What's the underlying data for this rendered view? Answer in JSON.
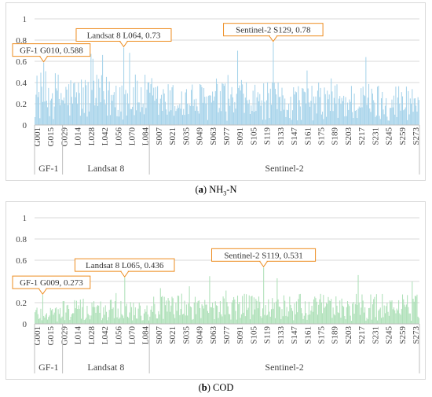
{
  "captions": {
    "a": {
      "letter": "a",
      "label": "NH3-N",
      "label_main": "NH",
      "label_sub": "3",
      "label_rest": "-N"
    },
    "b": {
      "letter": "b",
      "label": "COD"
    }
  },
  "chart_data": [
    {
      "type": "bar",
      "id": "a",
      "color": "#a6d3ea",
      "yticks": [
        "0",
        "0.2",
        "0.4",
        "0.6",
        "0.8",
        "1"
      ],
      "ylim": [
        0,
        1
      ],
      "grid": true,
      "groups": [
        {
          "name": "GF-1",
          "count": 29
        },
        {
          "name": "Landsat 8",
          "count": 90
        },
        {
          "name": "Sentinel-2",
          "count": 280
        }
      ],
      "xtick_labels": [
        "G001",
        "G015",
        "G029",
        "L014",
        "L028",
        "L042",
        "L056",
        "L070",
        "L084",
        "S007",
        "S021",
        "S035",
        "S049",
        "S063",
        "S077",
        "S091",
        "S105",
        "S119",
        "S133",
        "S147",
        "S161",
        "S175",
        "S189",
        "S203",
        "S217",
        "S231",
        "S245",
        "S259",
        "S273"
      ],
      "annotations": [
        {
          "text": "GF-1 G010, 0.588",
          "group": 0,
          "item": 10,
          "value": 0.588
        },
        {
          "text": "Landsat 8 L064, 0.73",
          "group": 1,
          "item": 64,
          "value": 0.73
        },
        {
          "text": "Sentinel-2 S129, 0.78",
          "group": 2,
          "item": 129,
          "value": 0.78
        }
      ],
      "profile": {
        "GF-1": 0.34,
        "Landsat 8": 0.32,
        "Sentinel-2": 0.27
      },
      "peaks": [
        {
          "group": 0,
          "item": 10,
          "value": 0.588
        },
        {
          "group": 1,
          "item": 64,
          "value": 0.73
        },
        {
          "group": 1,
          "item": 70,
          "value": 0.68
        },
        {
          "group": 1,
          "item": 42,
          "value": 0.66
        },
        {
          "group": 1,
          "item": 30,
          "value": 0.67
        },
        {
          "group": 2,
          "item": 92,
          "value": 0.7
        },
        {
          "group": 2,
          "item": 129,
          "value": 0.78
        },
        {
          "group": 2,
          "item": 225,
          "value": 0.64
        }
      ]
    },
    {
      "type": "bar",
      "id": "b",
      "color": "#aee0b8",
      "yticks": [
        "0",
        "0.2",
        "0.4",
        "0.6",
        "0.8",
        "1"
      ],
      "ylim": [
        0,
        1
      ],
      "grid": true,
      "groups": [
        {
          "name": "GF-1",
          "count": 29
        },
        {
          "name": "Landsat 8",
          "count": 90
        },
        {
          "name": "Sentinel-2",
          "count": 280
        }
      ],
      "xtick_labels": [
        "G001",
        "G015",
        "G029",
        "L014",
        "L028",
        "L042",
        "L056",
        "L070",
        "L084",
        "S007",
        "S021",
        "S035",
        "S049",
        "S063",
        "S077",
        "S091",
        "S105",
        "S119",
        "S133",
        "S147",
        "S161",
        "S175",
        "S189",
        "S203",
        "S217",
        "S231",
        "S245",
        "S259",
        "S273"
      ],
      "annotations": [
        {
          "text": "GF-1 G009, 0.273",
          "group": 0,
          "item": 9,
          "value": 0.273
        },
        {
          "text": "Landsat 8 L065, 0.436",
          "group": 1,
          "item": 65,
          "value": 0.436
        },
        {
          "text": "Sentinel-2 S119, 0.531",
          "group": 2,
          "item": 119,
          "value": 0.531
        }
      ],
      "profile": {
        "GF-1": 0.13,
        "Landsat 8": 0.16,
        "Sentinel-2": 0.19
      },
      "peaks": [
        {
          "group": 0,
          "item": 9,
          "value": 0.273
        },
        {
          "group": 1,
          "item": 65,
          "value": 0.436
        },
        {
          "group": 2,
          "item": 63,
          "value": 0.45
        },
        {
          "group": 2,
          "item": 119,
          "value": 0.531
        },
        {
          "group": 2,
          "item": 133,
          "value": 0.43
        },
        {
          "group": 2,
          "item": 217,
          "value": 0.46
        },
        {
          "group": 2,
          "item": 273,
          "value": 0.4
        }
      ]
    }
  ]
}
